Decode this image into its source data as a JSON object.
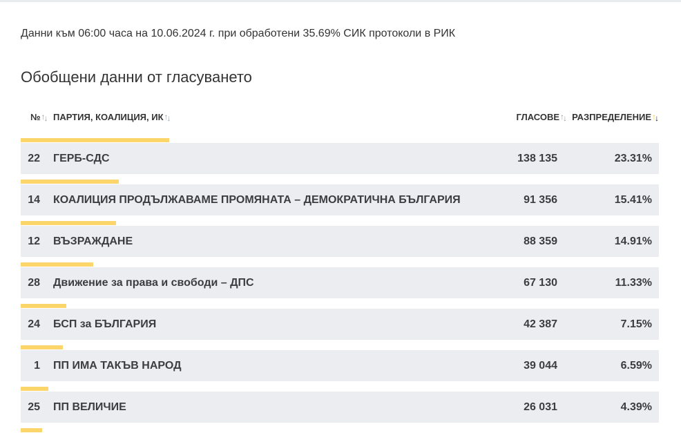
{
  "info_line": "Данни към 06:00 часа на 10.06.2024 г. при обработени 35.69% СИК протоколи в РИК",
  "section_title": "Обобщени данни от гласуването",
  "columns": {
    "number": "№",
    "party": "ПАРТИЯ, КОАЛИЦИЯ, ИК",
    "votes": "ГЛАСОВЕ",
    "distribution": "РАЗПРЕДЕЛЕНИЕ"
  },
  "sort_icons": {
    "up": "↑",
    "down": "↓"
  },
  "accent_color": "#fcd66b",
  "row_color": "#ebedf0",
  "rows": [
    {
      "number": "22",
      "party": "ГЕРБ-СДС",
      "votes": "138 135",
      "distribution": "23.31%",
      "share": 23.31
    },
    {
      "number": "14",
      "party": "КОАЛИЦИЯ ПРОДЪЛЖАВАМЕ ПРОМЯНАТА – ДЕМОКРАТИЧНА БЪЛГАРИЯ",
      "votes": "91 356",
      "distribution": "15.41%",
      "share": 15.41
    },
    {
      "number": "12",
      "party": "ВЪЗРАЖДАНЕ",
      "votes": "88 359",
      "distribution": "14.91%",
      "share": 14.91
    },
    {
      "number": "28",
      "party": "Движение за права и свободи – ДПС",
      "votes": "67 130",
      "distribution": "11.33%",
      "share": 11.33
    },
    {
      "number": "24",
      "party": "БСП за БЪЛГАРИЯ",
      "votes": "42 387",
      "distribution": "7.15%",
      "share": 7.15
    },
    {
      "number": "1",
      "party": "ПП ИМА ТАКЪВ НАРОД",
      "votes": "39 044",
      "distribution": "6.59%",
      "share": 6.59
    },
    {
      "number": "25",
      "party": "ПП ВЕЛИЧИЕ",
      "votes": "26 031",
      "distribution": "4.39%",
      "share": 4.39
    },
    {
      "number": "",
      "party": "",
      "votes": "",
      "distribution": "",
      "share": 3.4
    }
  ]
}
